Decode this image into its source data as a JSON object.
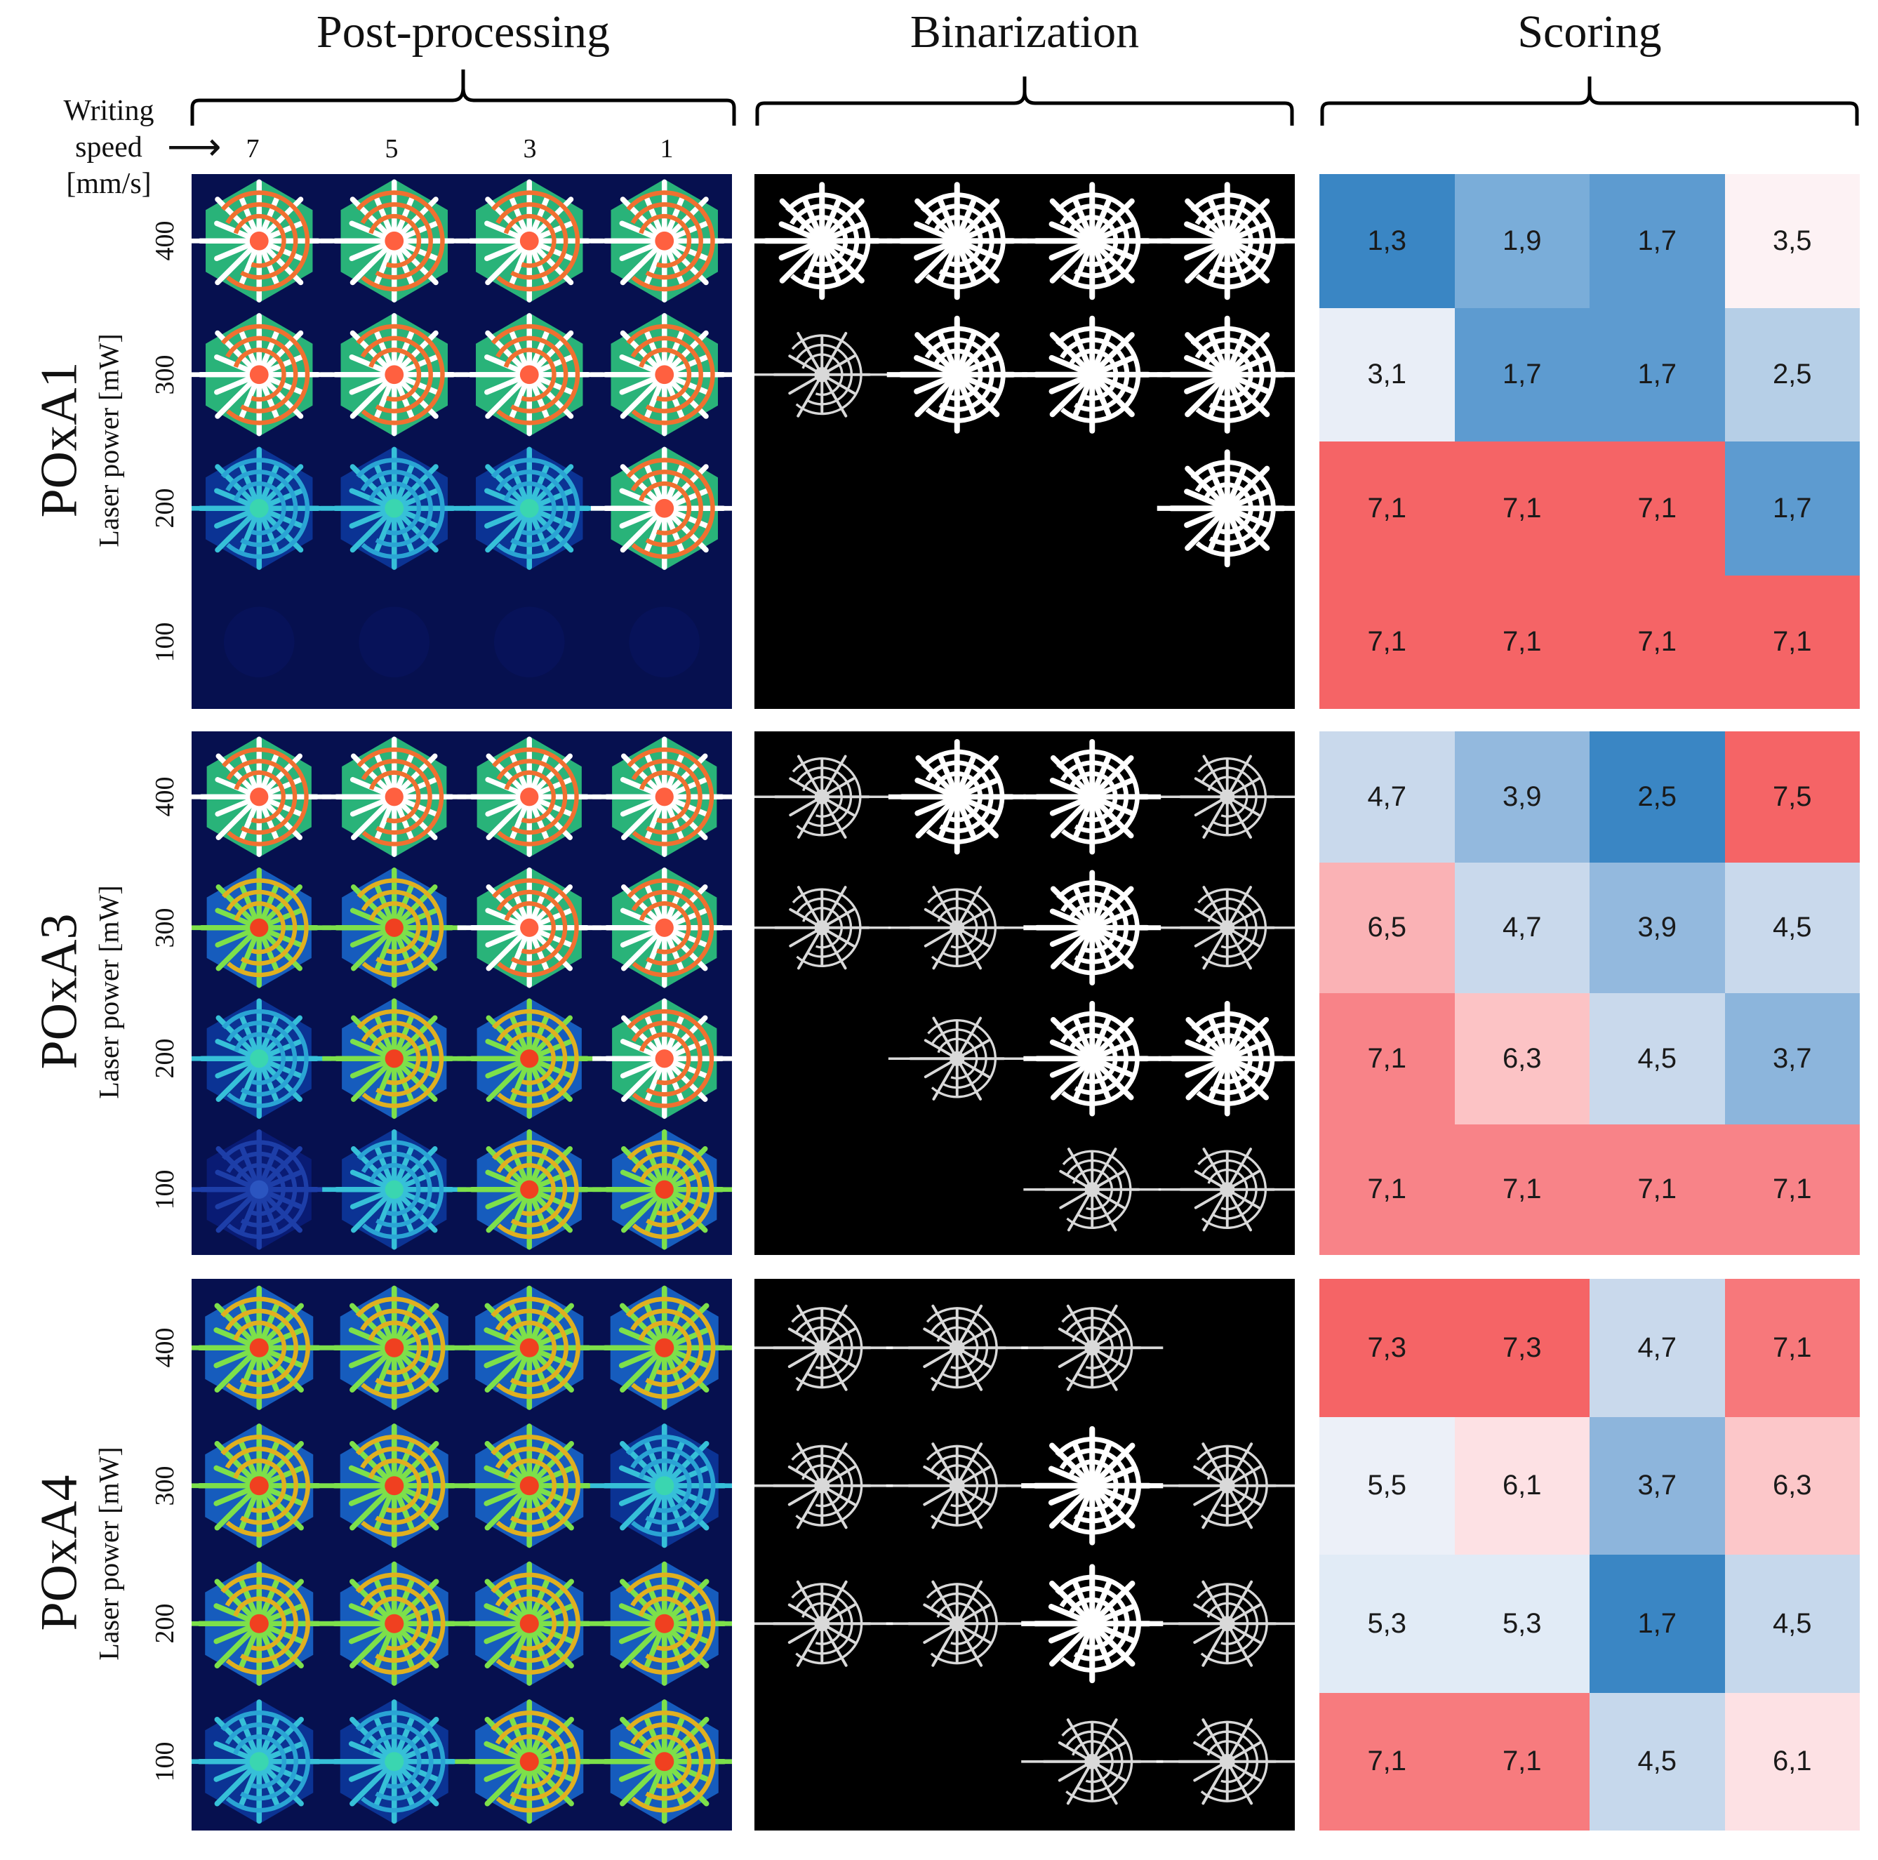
{
  "headers": {
    "post": "Post-processing",
    "bin": "Binarization",
    "score": "Scoring"
  },
  "speed_label": {
    "line1": "Writing",
    "line2": "speed",
    "line3": "[mm/s]",
    "arrow": "⟶"
  },
  "speeds": [
    "7",
    "5",
    "3",
    "1"
  ],
  "power_ticks": [
    "400",
    "300",
    "200",
    "100"
  ],
  "laser_label": "Laser power [mW]",
  "colors": {
    "blue_strong": "#3a86c4",
    "red_strong": "#f56466",
    "white": "#f7f7f7"
  },
  "materials": [
    {
      "name": "POxA1",
      "scores": [
        [
          "1,3",
          "1,9",
          "1,7",
          "3,5"
        ],
        [
          "3,1",
          "1,7",
          "1,7",
          "2,5"
        ],
        [
          "7,1",
          "7,1",
          "7,1",
          "1,7"
        ],
        [
          "7,1",
          "7,1",
          "7,1",
          "7,1"
        ]
      ],
      "cell_colors": [
        [
          "#3a86c4",
          "#7aadd9",
          "#5d9bd0",
          "#fdf2f4"
        ],
        [
          "#e9eef7",
          "#5d9bd0",
          "#5d9bd0",
          "#b6cfe7"
        ],
        [
          "#f56466",
          "#f56466",
          "#f56466",
          "#5d9bd0"
        ],
        [
          "#f56466",
          "#f56466",
          "#f56466",
          "#f56466"
        ]
      ]
    },
    {
      "name": "POxA3",
      "scores": [
        [
          "4,7",
          "3,9",
          "2,5",
          "7,5"
        ],
        [
          "6,5",
          "4,7",
          "3,9",
          "4,5"
        ],
        [
          "7,1",
          "6,3",
          "4,5",
          "3,7"
        ],
        [
          "7,1",
          "7,1",
          "7,1",
          "7,1"
        ]
      ],
      "cell_colors": [
        [
          "#c9d9ec",
          "#93b9de",
          "#3a86c4",
          "#f56466"
        ],
        [
          "#fab2b5",
          "#c9d9ec",
          "#93b9de",
          "#c9d9ec"
        ],
        [
          "#f88388",
          "#fcc3c5",
          "#c9d9ec",
          "#8cb5dc"
        ],
        [
          "#f88388",
          "#f88388",
          "#f88388",
          "#f88388"
        ]
      ]
    },
    {
      "name": "POxA4",
      "scores": [
        [
          "7,3",
          "7,3",
          "4,7",
          "7,1"
        ],
        [
          "5,5",
          "6,1",
          "3,7",
          "6,3"
        ],
        [
          "5,3",
          "5,3",
          "1,7",
          "4,5"
        ],
        [
          "7,1",
          "7,1",
          "4,5",
          "6,1"
        ]
      ],
      "cell_colors": [
        [
          "#f56466",
          "#f56466",
          "#c9d9ec",
          "#f7787b"
        ],
        [
          "#ecf0f8",
          "#fde1e4",
          "#8db5dc",
          "#fcc7c9"
        ],
        [
          "#e1ebf6",
          "#e1ebf6",
          "#3a86c4",
          "#c6d8ec"
        ],
        [
          "#f77b7e",
          "#f77b7e",
          "#c6d8ec",
          "#fde1e4"
        ]
      ]
    }
  ]
}
